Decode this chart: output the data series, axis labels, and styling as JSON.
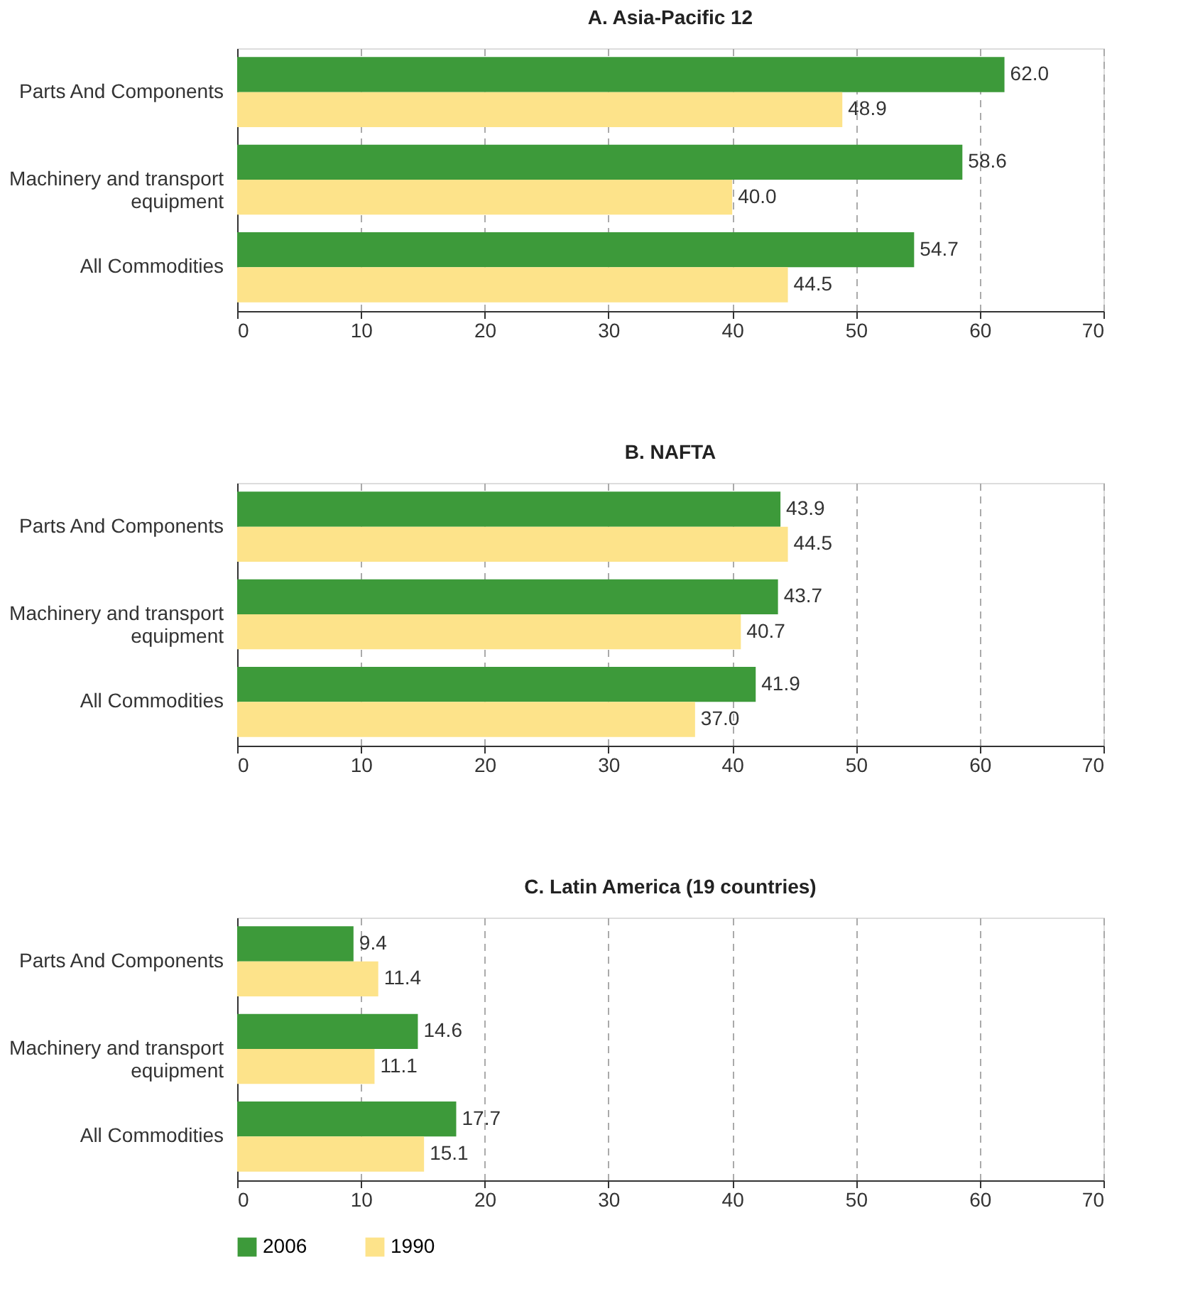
{
  "chart_data": [
    {
      "type": "bar",
      "title": "A. Asia-Pacific 12",
      "orientation": "horizontal",
      "categories": [
        "Parts And Components",
        "Machinery and transport equipment",
        "All Commodities"
      ],
      "series": [
        {
          "name": "2006",
          "color": "#3d9a3a",
          "values": [
            62,
            58.6,
            54.7
          ],
          "value_labels": [
            "62.0",
            "58.6",
            "54.7"
          ]
        },
        {
          "name": "1990",
          "color": "#fde38a",
          "values": [
            48.9,
            40,
            44.5
          ],
          "value_labels": [
            "48.9",
            "40.0",
            "44.5"
          ]
        }
      ],
      "xlim": [
        0,
        70
      ],
      "xticks": [
        0,
        10,
        20,
        30,
        40,
        50,
        60,
        70
      ],
      "grid": "x",
      "legend": "bottom"
    },
    {
      "type": "bar",
      "title": "B. NAFTA",
      "orientation": "horizontal",
      "categories": [
        "Parts And Components",
        "Machinery and transport equipment",
        "All Commodities"
      ],
      "series": [
        {
          "name": "2006",
          "color": "#3d9a3a",
          "values": [
            43.9,
            43.7,
            41.9
          ],
          "value_labels": [
            "43.9",
            "43.7",
            "41.9"
          ]
        },
        {
          "name": "1990",
          "color": "#fde38a",
          "values": [
            44.5,
            40.7,
            37
          ],
          "value_labels": [
            "44.5",
            "40.7",
            "37.0"
          ]
        }
      ],
      "xlim": [
        0,
        70
      ],
      "xticks": [
        0,
        10,
        20,
        30,
        40,
        50,
        60,
        70
      ],
      "grid": "x",
      "legend": "bottom"
    },
    {
      "type": "bar",
      "title": "C. Latin America (19 countries)",
      "orientation": "horizontal",
      "categories": [
        "Parts And Components",
        "Machinery and transport equipment",
        "All Commodities"
      ],
      "series": [
        {
          "name": "2006",
          "color": "#3d9a3a",
          "values": [
            9.4,
            14.6,
            17.7
          ],
          "value_labels": [
            "9.4",
            "14.6",
            "17.7"
          ]
        },
        {
          "name": "1990",
          "color": "#fde38a",
          "values": [
            11.4,
            11.1,
            15.1
          ],
          "value_labels": [
            "11.4",
            "11.1",
            "15.1"
          ]
        }
      ],
      "xlim": [
        0,
        70
      ],
      "xticks": [
        0,
        10,
        20,
        30,
        40,
        50,
        60,
        70
      ],
      "grid": "x",
      "legend": "bottom"
    }
  ]
}
